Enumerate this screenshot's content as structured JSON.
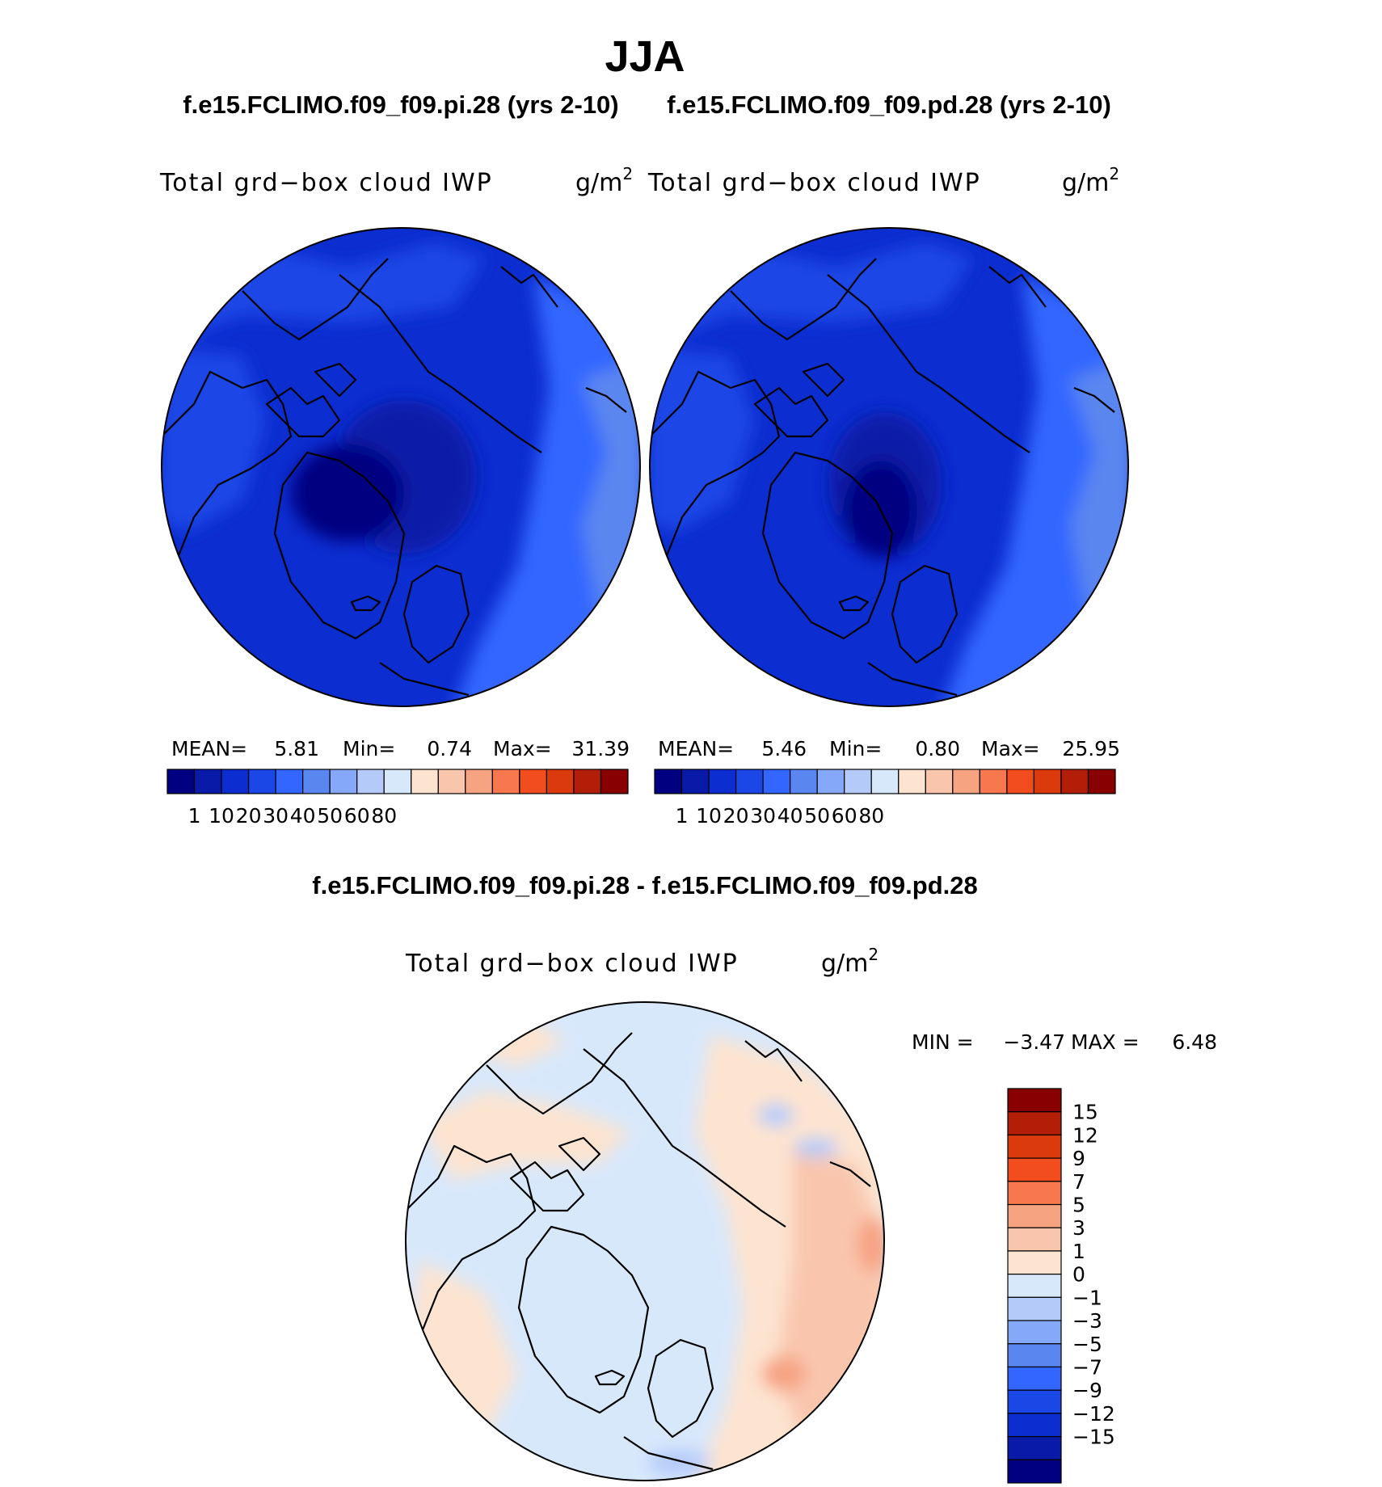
{
  "figure": {
    "season": "JJA",
    "bottom_title": "f.e15.FCLIMO.f09_f09.pi.28 - f.e15.FCLIMO.f09_f09.pd.28"
  },
  "colors": {
    "abs_scale": [
      "#000080",
      "#0a1aa8",
      "#0c2dd0",
      "#1a47e6",
      "#3366ff",
      "#5a86f0",
      "#86a8f8",
      "#b4cbfa",
      "#d8e8fb",
      "#fde4d0",
      "#f9c6ad",
      "#f6a382",
      "#f7784f",
      "#f24d1f",
      "#db3a0d",
      "#b31e08",
      "#880000"
    ],
    "diff_scale": [
      "#000080",
      "#0a1aa8",
      "#0c2dd0",
      "#1a47e6",
      "#3366ff",
      "#5a86f0",
      "#86a8f8",
      "#b4cbfa",
      "#d8e8fb",
      "#fde4d0",
      "#f9c6ad",
      "#f6a382",
      "#f7784f",
      "#f24d1f",
      "#db3a0d",
      "#b31e08",
      "#880000"
    ]
  },
  "chart_data": [
    {
      "type": "heatmap",
      "title": "f.e15.FCLIMO.f09_f09.pi.28 (yrs 2-10)",
      "variable": "Total grd−box cloud IWP",
      "units": "g/m",
      "units_exponent": "2",
      "projection": "north polar stereographic",
      "stats": {
        "mean_label": "MEAN=",
        "mean": "5.81",
        "min_label": "Min=",
        "min": "0.74",
        "max_label": "Max=",
        "max": "31.39"
      },
      "colorbar_ticks": [
        "1",
        "10",
        "20",
        "30",
        "40",
        "50",
        "60",
        "80"
      ],
      "field_summary": "values mostly 1-20 g/m2; minimum over central Arctic / Greenland, higher over North Atlantic and North Pacific"
    },
    {
      "type": "heatmap",
      "title": "f.e15.FCLIMO.f09_f09.pd.28 (yrs 2-10)",
      "variable": "Total grd−box cloud IWP",
      "units": "g/m",
      "units_exponent": "2",
      "projection": "north polar stereographic",
      "stats": {
        "mean_label": "MEAN=",
        "mean": "5.46",
        "min_label": "Min=",
        "min": "0.80",
        "max_label": "Max=",
        "max": "25.95"
      },
      "colorbar_ticks": [
        "1",
        "10",
        "20",
        "30",
        "40",
        "50",
        "60",
        "80"
      ],
      "field_summary": "values mostly 1-20 g/m2; minimum over central Arctic / Greenland"
    },
    {
      "type": "heatmap",
      "title": "f.e15.FCLIMO.f09_f09.pi.28 - f.e15.FCLIMO.f09_f09.pd.28",
      "variable": "Total grd−box cloud IWP",
      "units": "g/m",
      "units_exponent": "2",
      "projection": "north polar stereographic",
      "stats": {
        "min_label": "MIN =",
        "min": "−3.47",
        "max_label": "MAX =",
        "max": "6.48"
      },
      "colorbar_ticks": [
        "15",
        "12",
        "9",
        "7",
        "5",
        "3",
        "1",
        "0",
        "−1",
        "−3",
        "−5",
        "−7",
        "−9",
        "−12",
        "−15"
      ],
      "field_summary": "differences mostly between -1 and 3; positive over North Atlantic and Eurasia, slightly negative over central Arctic"
    }
  ]
}
